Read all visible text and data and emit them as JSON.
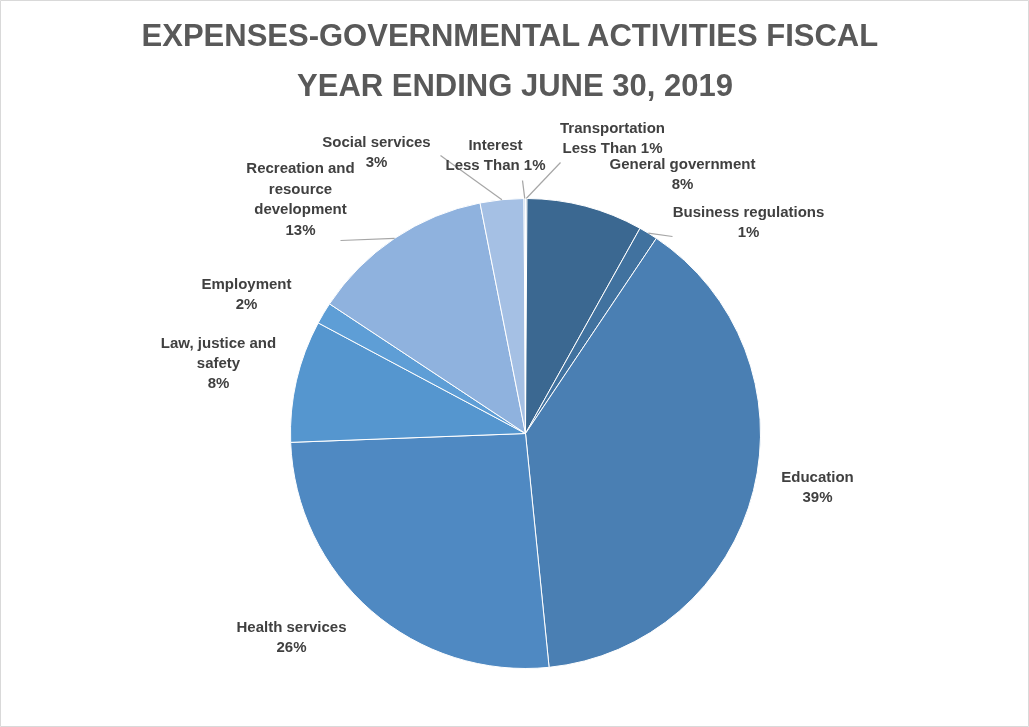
{
  "chart_data": {
    "type": "pie",
    "title": "EXPENSES-GOVERNMENTAL  ACTIVITIES FISCAL YEAR ENDING JUNE 30, 2019",
    "categories": [
      "Transportation",
      "General government",
      "Business regulations",
      "Education",
      "Health services",
      "Law, justice and safety",
      "Employment",
      "Recreation and resource development",
      "Social services",
      "Interest"
    ],
    "values": [
      0.1,
      8,
      1.3,
      39,
      26,
      8.4,
      1.5,
      12.6,
      3,
      0.1
    ],
    "value_labels": [
      "Less Than 1%",
      "8%",
      "1%",
      "39%",
      "26%",
      "8%",
      "2%",
      "13%",
      "3%",
      "Less Than 1%"
    ],
    "colors": [
      "#3a668f",
      "#3b6891",
      "#41729f",
      "#4a7fb3",
      "#4f89c2",
      "#5596cf",
      "#5e9ed6",
      "#8fb2de",
      "#a5c0e4",
      "#b4cbe8"
    ],
    "legend": false
  }
}
